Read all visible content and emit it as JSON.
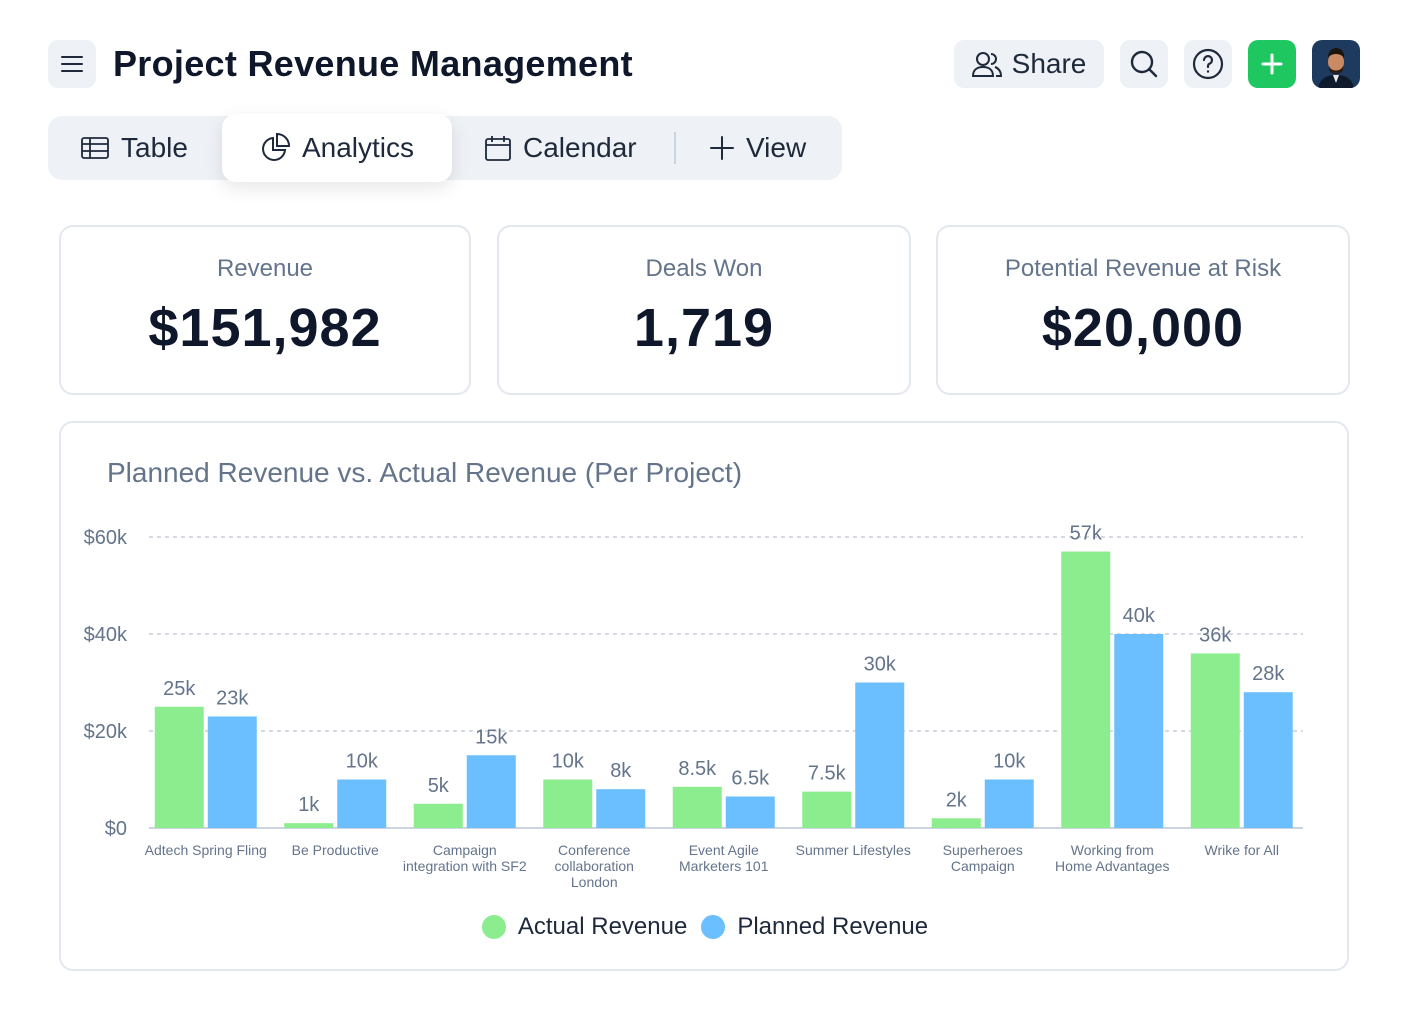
{
  "header": {
    "title": "Project Revenue Management",
    "share": "Share"
  },
  "tabs": [
    "Table",
    "Analytics",
    "Calendar",
    "View"
  ],
  "kpis": [
    {
      "label": "Revenue",
      "value": "$151,982"
    },
    {
      "label": "Deals Won",
      "value": "1,719"
    },
    {
      "label": "Potential Revenue at Risk",
      "value": "$20,000"
    }
  ],
  "chart_data": {
    "type": "bar",
    "title": "Planned Revenue vs. Actual Revenue (Per Project)",
    "categories": [
      "Adtech Spring Fling",
      "Be Productive",
      "Campaign integration with SF2",
      "Conference collaboration London",
      "Event Agile Marketers 101",
      "Summer Lifestyles",
      "Superheroes Campaign",
      "Working from Home Advantages",
      "Wrike for All"
    ],
    "series": [
      {
        "name": "Actual Revenue",
        "color": "#8ced8f",
        "values": [
          25000,
          1000,
          5000,
          10000,
          8500,
          7500,
          2000,
          57000,
          36000
        ],
        "value_labels": [
          "25k",
          "1k",
          "5k",
          "10k",
          "8.5k",
          "7.5k",
          "2k",
          "57k",
          "36k"
        ]
      },
      {
        "name": "Planned Revenue",
        "color": "#6bbfff",
        "values": [
          23000,
          10000,
          15000,
          8000,
          6500,
          30000,
          10000,
          40000,
          28000
        ],
        "value_labels": [
          "23k",
          "10k",
          "15k",
          "8k",
          "6.5k",
          "30k",
          "10k",
          "40k",
          "28k"
        ]
      }
    ],
    "ylim": [
      0,
      60000
    ],
    "yticks": [
      {
        "value": 0,
        "label": "$0"
      },
      {
        "value": 20000,
        "label": "$20k"
      },
      {
        "value": 40000,
        "label": "$40k"
      },
      {
        "value": 60000,
        "label": "$60k"
      }
    ],
    "grid": true,
    "legend": "bottom"
  }
}
